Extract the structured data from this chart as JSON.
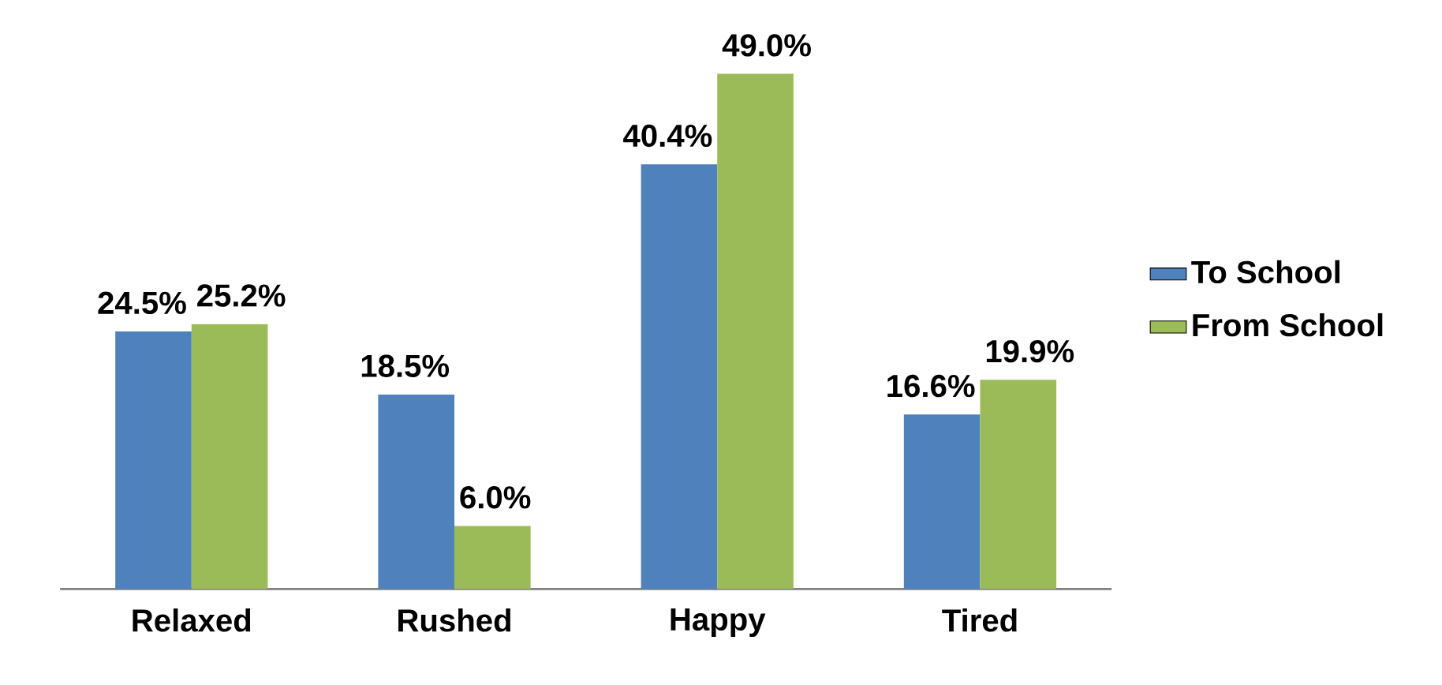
{
  "chart_data": {
    "type": "bar",
    "categories": [
      "Relaxed",
      "Rushed",
      "Happy",
      "Tired"
    ],
    "series": [
      {
        "name": "To School",
        "color": "#4f81bd",
        "values": [
          24.5,
          18.5,
          40.4,
          16.6
        ],
        "value_labels": [
          "24.5%",
          "18.5%",
          "40.4%",
          "16.6%"
        ]
      },
      {
        "name": "From School",
        "color": "#9bbb59",
        "values": [
          25.2,
          6.0,
          49.0,
          19.9
        ],
        "value_labels": [
          "25.2%",
          "6.0%",
          "49.0%",
          "19.9%"
        ]
      }
    ],
    "legend": "right"
  }
}
